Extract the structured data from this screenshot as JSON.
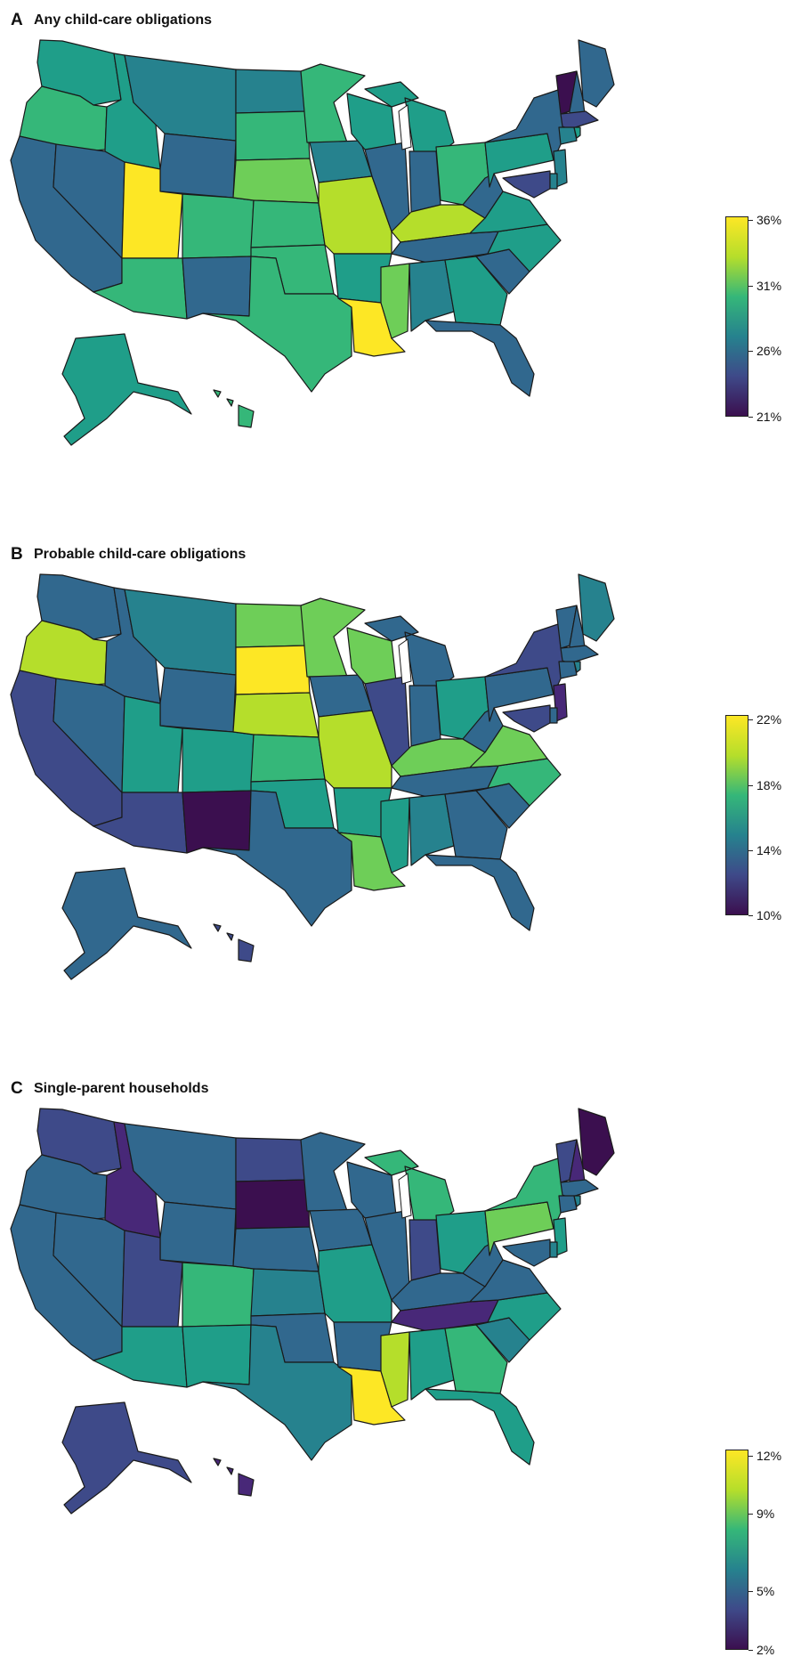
{
  "palette": {
    "v0": "#3b0f4f",
    "v1": "#482878",
    "v2": "#3e4a89",
    "v3": "#31688e",
    "v4": "#26828e",
    "v5": "#1f9e89",
    "v6": "#35b779",
    "v7": "#6ece58",
    "v8": "#b5de2b",
    "v9": "#fde725"
  },
  "panels": [
    {
      "letter": "A",
      "title": "Any child-care obligations",
      "legend": {
        "gradient": [
          "#3b0f4f",
          "#3e4a89",
          "#26828e",
          "#35b779",
          "#b5de2b",
          "#fde725"
        ],
        "ticks": [
          {
            "label": "36%",
            "value": 36
          },
          {
            "label": "31%",
            "value": 31
          },
          {
            "label": "26%",
            "value": 26
          },
          {
            "label": "21%",
            "value": 21
          }
        ],
        "min": 21,
        "max": 36.3
      },
      "fills": {
        "WA": "v5",
        "OR": "v6",
        "CA": "v3",
        "NV": "v3",
        "ID": "v5",
        "MT": "v4",
        "WY": "v3",
        "UT": "v9",
        "AZ": "v6",
        "CO": "v6",
        "NM": "v3",
        "ND": "v4",
        "SD": "v6",
        "NE": "v7",
        "KS": "v6",
        "OK": "v6",
        "TX": "v6",
        "MN": "v6",
        "IA": "v4",
        "MO": "v8",
        "AR": "v5",
        "LA": "v9",
        "WI": "v5",
        "IL": "v3",
        "MI": "v5",
        "IN": "v3",
        "OH": "v6",
        "KY": "v8",
        "TN": "v3",
        "MS": "v7",
        "AL": "v4",
        "GA": "v5",
        "FL": "v3",
        "SC": "v3",
        "NC": "v5",
        "VA": "v5",
        "WV": "v3",
        "PA": "v5",
        "NY": "v3",
        "ME": "v3",
        "VT": "v0",
        "NH": "v3",
        "MA": "v2",
        "NJ": "v4",
        "MD": "v2",
        "DE": "v4",
        "CT": "v4",
        "RI": "v5",
        "AK": "v5",
        "HI": "v6"
      }
    },
    {
      "letter": "B",
      "title": "Probable child-care obligations",
      "legend": {
        "gradient": [
          "#3b0f4f",
          "#3e4a89",
          "#26828e",
          "#35b779",
          "#b5de2b",
          "#fde725"
        ],
        "ticks": [
          {
            "label": "22%",
            "value": 22
          },
          {
            "label": "18%",
            "value": 18
          },
          {
            "label": "14%",
            "value": 14
          },
          {
            "label": "10%",
            "value": 10
          }
        ],
        "min": 10,
        "max": 22.3
      },
      "fills": {
        "WA": "v3",
        "OR": "v8",
        "CA": "v2",
        "NV": "v3",
        "ID": "v3",
        "MT": "v4",
        "WY": "v3",
        "UT": "v5",
        "AZ": "v2",
        "CO": "v5",
        "NM": "v0",
        "ND": "v7",
        "SD": "v9",
        "NE": "v8",
        "KS": "v6",
        "OK": "v5",
        "TX": "v3",
        "MN": "v7",
        "IA": "v3",
        "MO": "v8",
        "AR": "v5",
        "LA": "v7",
        "WI": "v7",
        "IL": "v2",
        "MI": "v3",
        "IN": "v3",
        "OH": "v5",
        "KY": "v7",
        "TN": "v3",
        "MS": "v5",
        "AL": "v4",
        "GA": "v3",
        "FL": "v3",
        "SC": "v3",
        "NC": "v6",
        "VA": "v7",
        "WV": "v3",
        "PA": "v3",
        "NY": "v2",
        "ME": "v4",
        "VT": "v3",
        "NH": "v3",
        "MA": "v3",
        "NJ": "v1",
        "MD": "v2",
        "DE": "v3",
        "CT": "v3",
        "RI": "v4",
        "AK": "v3",
        "HI": "v2"
      }
    },
    {
      "letter": "C",
      "title": "Single-parent households",
      "legend": {
        "gradient": [
          "#3b0f4f",
          "#3e4a89",
          "#26828e",
          "#35b779",
          "#b5de2b",
          "#fde725"
        ],
        "ticks": [
          {
            "label": "12%",
            "value": 12
          },
          {
            "label": "9%",
            "value": 9
          },
          {
            "label": "5%",
            "value": 5
          },
          {
            "label": "2%",
            "value": 2
          }
        ],
        "min": 2,
        "max": 12.3
      },
      "fills": {
        "WA": "v2",
        "OR": "v3",
        "CA": "v3",
        "NV": "v3",
        "ID": "v1",
        "MT": "v3",
        "WY": "v3",
        "UT": "v2",
        "AZ": "v5",
        "CO": "v6",
        "NM": "v5",
        "ND": "v2",
        "SD": "v0",
        "NE": "v3",
        "KS": "v4",
        "OK": "v3",
        "TX": "v4",
        "MN": "v3",
        "IA": "v3",
        "MO": "v5",
        "AR": "v3",
        "LA": "v9",
        "WI": "v3",
        "IL": "v3",
        "MI": "v6",
        "IN": "v2",
        "OH": "v5",
        "KY": "v3",
        "TN": "v1",
        "MS": "v8",
        "AL": "v5",
        "GA": "v6",
        "FL": "v5",
        "SC": "v4",
        "NC": "v5",
        "VA": "v3",
        "WV": "v3",
        "PA": "v7",
        "NY": "v6",
        "ME": "v0",
        "VT": "v2",
        "NH": "v1",
        "MA": "v3",
        "NJ": "v5",
        "MD": "v3",
        "DE": "v4",
        "CT": "v3",
        "RI": "v4",
        "AK": "v2",
        "HI": "v1"
      }
    }
  ]
}
